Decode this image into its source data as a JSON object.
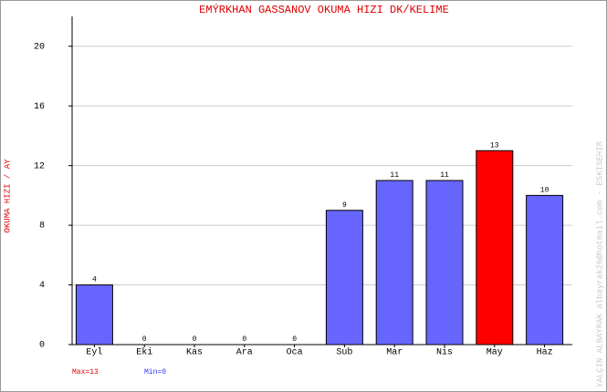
{
  "chart_data": {
    "type": "bar",
    "title": "EMÝRKHAN GASSANOV   OKUMA HIZI  DK/KELIME",
    "y_label": "OKUMA HIZI / AY",
    "side_note": "YALÇIN ALBAYRAK  albayrak26@hotmail.com - ESKISEHIR",
    "categories": [
      "Eyl",
      "Eki",
      "Kas",
      "Ara",
      "Oca",
      "Sub",
      "Mar",
      "Nis",
      "May",
      "Haz"
    ],
    "values": [
      4,
      0,
      0,
      0,
      0,
      9,
      11,
      11,
      13,
      10
    ],
    "colors": [
      "#6666ff",
      "#6666ff",
      "#6666ff",
      "#6666ff",
      "#6666ff",
      "#6666ff",
      "#6666ff",
      "#6666ff",
      "#ff0000",
      "#6666ff"
    ],
    "ylim": [
      0,
      22
    ],
    "yticks": [
      0,
      4,
      8,
      12,
      16,
      20
    ],
    "grid": true,
    "max_label": "Max=13",
    "min_label": "Min=0"
  }
}
